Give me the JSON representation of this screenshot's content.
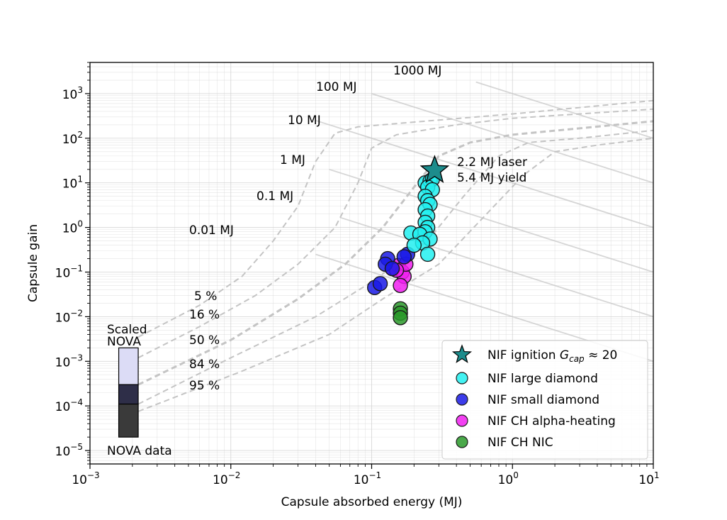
{
  "chart_data": {
    "type": "scatter",
    "xscale": "log",
    "yscale": "log",
    "xlim": [
      0.001,
      10
    ],
    "ylim": [
      5e-06,
      5000
    ],
    "xlabel": "Capsule absorbed energy (MJ)",
    "ylabel": "Capsule gain",
    "x_ticks": [
      {
        "value": 0.001,
        "base": "10",
        "exp": "−3"
      },
      {
        "value": 0.01,
        "base": "10",
        "exp": "−2"
      },
      {
        "value": 0.1,
        "base": "10",
        "exp": "−1"
      },
      {
        "value": 1,
        "base": "10",
        "exp": "0"
      },
      {
        "value": 10,
        "base": "10",
        "exp": "1"
      }
    ],
    "y_ticks": [
      {
        "value": 1e-05,
        "base": "10",
        "exp": "−5"
      },
      {
        "value": 0.0001,
        "base": "10",
        "exp": "−4"
      },
      {
        "value": 0.001,
        "base": "10",
        "exp": "−3"
      },
      {
        "value": 0.01,
        "base": "10",
        "exp": "−2"
      },
      {
        "value": 0.1,
        "base": "10",
        "exp": "−1"
      },
      {
        "value": 1,
        "base": "10",
        "exp": "0"
      },
      {
        "value": 10,
        "base": "10",
        "exp": "1"
      },
      {
        "value": 100,
        "base": "10",
        "exp": "2"
      },
      {
        "value": 1000,
        "base": "10",
        "exp": "3"
      }
    ],
    "yield_lines": [
      {
        "label": "0.01 MJ",
        "yield_mj": 0.01
      },
      {
        "label": "0.1 MJ",
        "yield_mj": 0.1
      },
      {
        "label": "1 MJ",
        "yield_mj": 1
      },
      {
        "label": "10 MJ",
        "yield_mj": 10
      },
      {
        "label": "100 MJ",
        "yield_mj": 100
      },
      {
        "label": "1000 MJ",
        "yield_mj": 1000
      }
    ],
    "percentile_curves": [
      {
        "label": "5 %",
        "points": [
          [
            0.0022,
            0.0035
          ],
          [
            0.006,
            0.018
          ],
          [
            0.012,
            0.08
          ],
          [
            0.02,
            0.5
          ],
          [
            0.03,
            3
          ],
          [
            0.04,
            30
          ],
          [
            0.055,
            130
          ],
          [
            0.08,
            180
          ],
          [
            0.2,
            230
          ],
          [
            1,
            350
          ],
          [
            10,
            700
          ]
        ]
      },
      {
        "label": "16 %",
        "points": [
          [
            0.0022,
            0.0012
          ],
          [
            0.006,
            0.006
          ],
          [
            0.015,
            0.03
          ],
          [
            0.03,
            0.15
          ],
          [
            0.055,
            1.0
          ],
          [
            0.08,
            10
          ],
          [
            0.1,
            60
          ],
          [
            0.15,
            120
          ],
          [
            0.4,
            200
          ],
          [
            1,
            280
          ],
          [
            10,
            450
          ]
        ]
      },
      {
        "label": "50 %",
        "points": [
          [
            0.0022,
            0.0003
          ],
          [
            0.01,
            0.003
          ],
          [
            0.03,
            0.025
          ],
          [
            0.065,
            0.15
          ],
          [
            0.12,
            1.0
          ],
          [
            0.2,
            8
          ],
          [
            0.3,
            40
          ],
          [
            0.5,
            80
          ],
          [
            1,
            120
          ],
          [
            10,
            240
          ]
        ]
      },
      {
        "label": "84 %",
        "points": [
          [
            0.0022,
            0.00011
          ],
          [
            0.01,
            0.0012
          ],
          [
            0.04,
            0.01
          ],
          [
            0.1,
            0.06
          ],
          [
            0.25,
            0.5
          ],
          [
            0.45,
            5
          ],
          [
            0.8,
            40
          ],
          [
            1.3,
            80
          ],
          [
            3,
            100
          ],
          [
            10,
            150
          ]
        ]
      },
      {
        "label": "95 %",
        "points": [
          [
            0.0022,
            7.5e-05
          ],
          [
            0.012,
            0.0006
          ],
          [
            0.05,
            0.004
          ],
          [
            0.12,
            0.025
          ],
          [
            0.3,
            0.15
          ],
          [
            0.6,
            1.5
          ],
          [
            1.2,
            15
          ],
          [
            2,
            50
          ],
          [
            4,
            70
          ],
          [
            10,
            100
          ]
        ]
      }
    ],
    "nova_boxes": [
      {
        "x_range": [
          0.0016,
          0.0022
        ],
        "y_range": [
          0.0003,
          0.002
        ],
        "color": "#dcdcf6"
      },
      {
        "x_range": [
          0.0016,
          0.0022
        ],
        "y_range": [
          0.00011,
          0.0003
        ],
        "color": "#2e2e48"
      },
      {
        "x_range": [
          0.0016,
          0.0022
        ],
        "y_range": [
          2e-05,
          0.00011
        ],
        "color": "#3a3a3a"
      }
    ],
    "nova_labels": {
      "scaled_line1": "Scaled",
      "scaled_line2": "NOVA",
      "data": "NOVA data"
    },
    "annotation": {
      "line1": "2.2 MJ laser",
      "line2": "5.4 MJ yield"
    },
    "series": [
      {
        "name": "NIF ignition G_cap ≈ 20",
        "color": "#1d8c8c",
        "marker": "star",
        "points": [
          [
            0.28,
            19
          ]
        ]
      },
      {
        "name": "NIF large diamond",
        "color": "#22f0f0",
        "marker": "circle",
        "points": [
          [
            0.24,
            10
          ],
          [
            0.26,
            11
          ],
          [
            0.27,
            12
          ],
          [
            0.25,
            8
          ],
          [
            0.27,
            7
          ],
          [
            0.24,
            5
          ],
          [
            0.25,
            4
          ],
          [
            0.26,
            3.3
          ],
          [
            0.24,
            2.5
          ],
          [
            0.25,
            1.8
          ],
          [
            0.24,
            1.3
          ],
          [
            0.25,
            1.0
          ],
          [
            0.24,
            0.8
          ],
          [
            0.19,
            0.75
          ],
          [
            0.22,
            0.7
          ],
          [
            0.26,
            0.55
          ],
          [
            0.23,
            0.45
          ],
          [
            0.25,
            0.25
          ],
          [
            0.2,
            0.4
          ]
        ]
      },
      {
        "name": "NIF small diamond",
        "color": "#1a1ae6",
        "marker": "circle",
        "points": [
          [
            0.105,
            0.045
          ],
          [
            0.115,
            0.055
          ],
          [
            0.13,
            0.2
          ],
          [
            0.125,
            0.15
          ],
          [
            0.14,
            0.12
          ],
          [
            0.18,
            0.25
          ],
          [
            0.17,
            0.22
          ]
        ]
      },
      {
        "name": "NIF CH alpha-heating",
        "color": "#f01ef0",
        "marker": "circle",
        "points": [
          [
            0.14,
            0.12
          ],
          [
            0.155,
            0.14
          ],
          [
            0.165,
            0.1
          ],
          [
            0.17,
            0.08
          ],
          [
            0.16,
            0.05
          ],
          [
            0.175,
            0.15
          ],
          [
            0.15,
            0.11
          ]
        ]
      },
      {
        "name": "NIF CH NIC",
        "color": "#2a9a2a",
        "marker": "circle",
        "points": [
          [
            0.16,
            0.015
          ],
          [
            0.16,
            0.012
          ],
          [
            0.16,
            0.0095
          ]
        ]
      }
    ],
    "legend": {
      "placement": "lower-right",
      "entries": [
        {
          "text": "NIF ignition ",
          "math_main": "G",
          "math_sub": "cap",
          "math_tail": " ≈ 20"
        },
        {
          "text": "NIF large diamond"
        },
        {
          "text": "NIF small diamond"
        },
        {
          "text": "NIF CH alpha-heating"
        },
        {
          "text": "NIF CH NIC"
        }
      ]
    }
  }
}
